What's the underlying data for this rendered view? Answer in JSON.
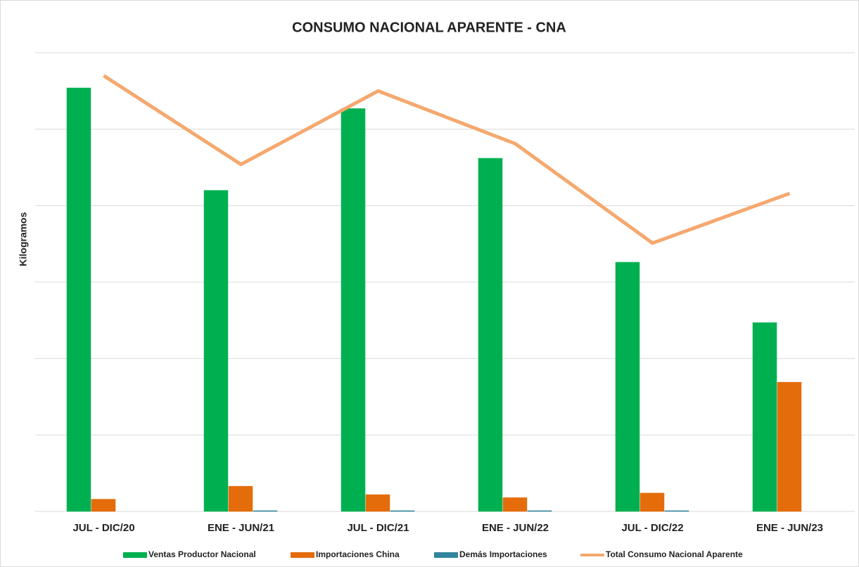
{
  "chart_data": {
    "type": "bar_line",
    "title": "CONSUMO NACIONAL  APARENTE - CNA",
    "y_label": "Kilogramos",
    "categories": [
      "JUL - DIC/20",
      "ENE - JUN/21",
      "JUL - DIC/21",
      "ENE - JUN/22",
      "JUL - DIC/22",
      "ENE - JUN/23"
    ],
    "series": [
      {
        "name": "Ventas Productor Nacional",
        "color": "#00b050",
        "kind": "bar",
        "values": [
          5.54,
          4.2,
          5.27,
          4.62,
          3.26,
          2.47
        ]
      },
      {
        "name": "Importaciones China",
        "color": "#e46c0a",
        "kind": "bar",
        "values": [
          0.16,
          0.33,
          0.22,
          0.18,
          0.24,
          1.69
        ]
      },
      {
        "name": "Demás Importaciones",
        "color": "#31859c",
        "kind": "bar",
        "values": [
          0,
          0.01,
          0.01,
          0.01,
          0.01,
          0
        ]
      },
      {
        "name": "Total Consumo Nacional Aparente",
        "color": "#f5a86e",
        "kind": "line",
        "values": [
          5.7,
          4.54,
          5.5,
          4.81,
          3.51,
          4.16
        ]
      }
    ],
    "ylim": [
      0,
      6
    ],
    "yticks": [
      0,
      1,
      2,
      3,
      4,
      5,
      6
    ],
    "grid": true
  }
}
